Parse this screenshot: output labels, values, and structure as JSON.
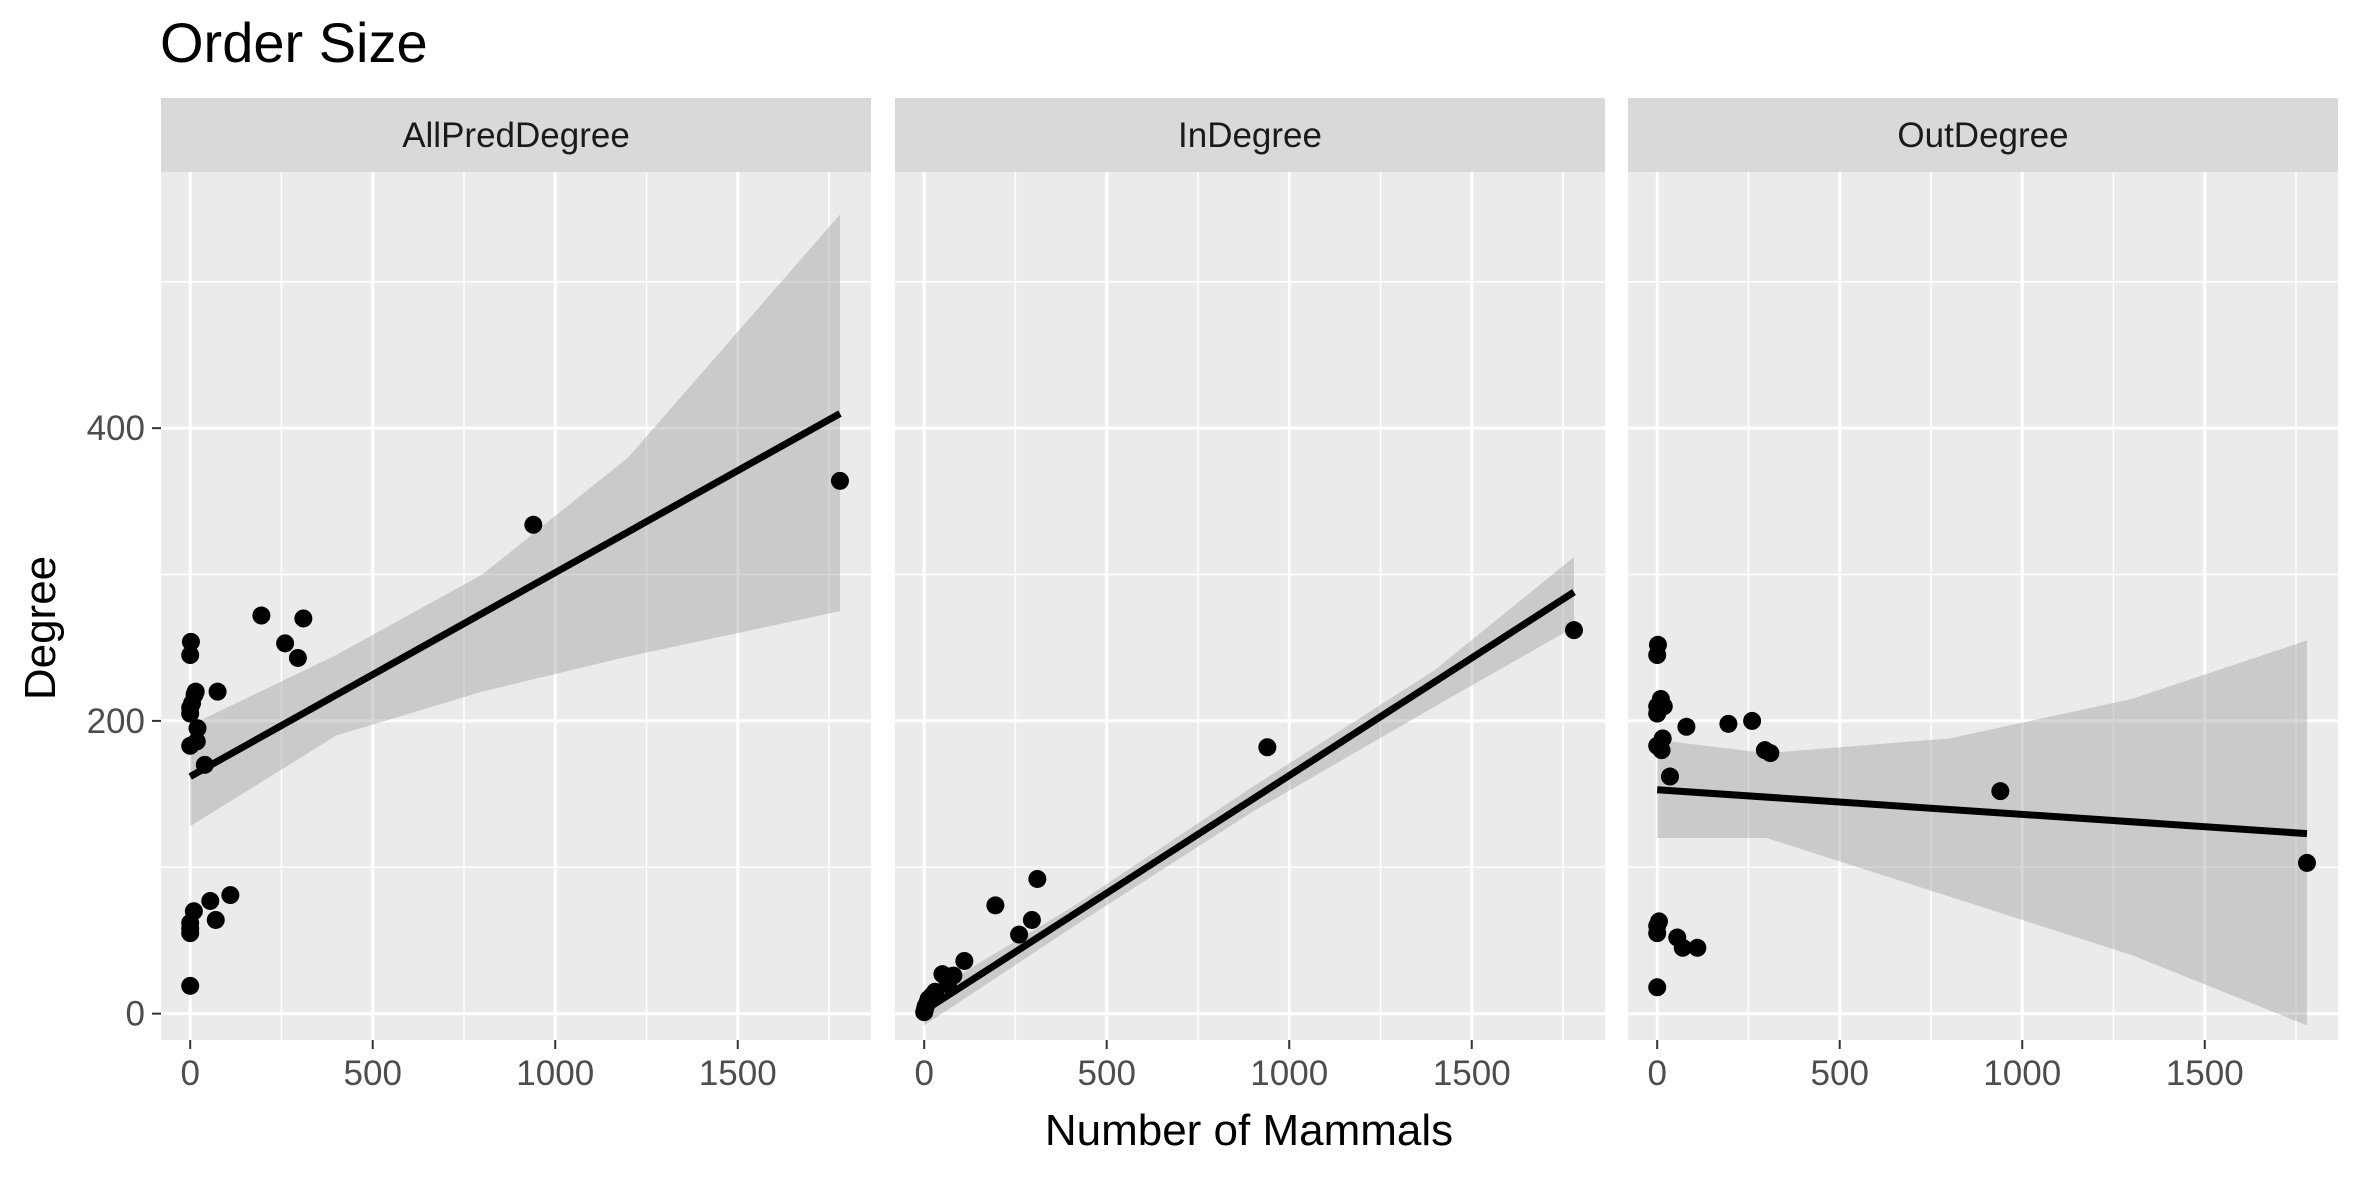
{
  "chart_data": {
    "type": "scatter",
    "title": "Order Size",
    "xlabel": "Number of Mammals",
    "ylabel": "Degree",
    "xlim": [
      -80,
      1865
    ],
    "ylim": [
      -18,
      575
    ],
    "x_ticks": [
      0,
      500,
      1000,
      1500
    ],
    "x_tick_labels": [
      "0",
      "500",
      "1000",
      "1500"
    ],
    "y_ticks": [
      0,
      200,
      400
    ],
    "y_tick_labels": [
      "0",
      "200",
      "400"
    ],
    "grid": true,
    "smoother": "linear regression with confidence band",
    "colors": {
      "panel": "#ebebeb",
      "strip": "#d9d9d9",
      "grid_major": "#ffffff",
      "points": "#000000",
      "line": "#000000",
      "band": "#999999"
    },
    "panels": [
      {
        "label": "AllPredDegree",
        "points": [
          {
            "x": 0,
            "y": 19
          },
          {
            "x": 0,
            "y": 55
          },
          {
            "x": 0,
            "y": 58
          },
          {
            "x": 0,
            "y": 62
          },
          {
            "x": 0,
            "y": 183
          },
          {
            "x": 0,
            "y": 205
          },
          {
            "x": 0,
            "y": 209
          },
          {
            "x": 0,
            "y": 245
          },
          {
            "x": 2,
            "y": 254
          },
          {
            "x": 5,
            "y": 212
          },
          {
            "x": 10,
            "y": 70
          },
          {
            "x": 12,
            "y": 218
          },
          {
            "x": 15,
            "y": 220
          },
          {
            "x": 18,
            "y": 186
          },
          {
            "x": 20,
            "y": 195
          },
          {
            "x": 40,
            "y": 170
          },
          {
            "x": 55,
            "y": 77
          },
          {
            "x": 70,
            "y": 64
          },
          {
            "x": 75,
            "y": 220
          },
          {
            "x": 110,
            "y": 81
          },
          {
            "x": 195,
            "y": 272
          },
          {
            "x": 260,
            "y": 253
          },
          {
            "x": 295,
            "y": 243
          },
          {
            "x": 310,
            "y": 270
          },
          {
            "x": 940,
            "y": 334
          },
          {
            "x": 1780,
            "y": 364
          }
        ],
        "fit": {
          "x": [
            0,
            1780
          ],
          "y": [
            162,
            410
          ]
        },
        "ci_upper": [
          {
            "x": 0,
            "y": 197
          },
          {
            "x": 400,
            "y": 245
          },
          {
            "x": 800,
            "y": 300
          },
          {
            "x": 1200,
            "y": 380
          },
          {
            "x": 1780,
            "y": 546
          }
        ],
        "ci_lower": [
          {
            "x": 0,
            "y": 128
          },
          {
            "x": 400,
            "y": 190
          },
          {
            "x": 800,
            "y": 220
          },
          {
            "x": 1200,
            "y": 244
          },
          {
            "x": 1780,
            "y": 275
          }
        ]
      },
      {
        "label": "InDegree",
        "points": [
          {
            "x": 0,
            "y": 1
          },
          {
            "x": 2,
            "y": 3
          },
          {
            "x": 4,
            "y": 5
          },
          {
            "x": 8,
            "y": 7
          },
          {
            "x": 12,
            "y": 10
          },
          {
            "x": 20,
            "y": 12
          },
          {
            "x": 30,
            "y": 15
          },
          {
            "x": 50,
            "y": 27
          },
          {
            "x": 65,
            "y": 20
          },
          {
            "x": 80,
            "y": 26
          },
          {
            "x": 110,
            "y": 36
          },
          {
            "x": 195,
            "y": 74
          },
          {
            "x": 260,
            "y": 54
          },
          {
            "x": 295,
            "y": 64
          },
          {
            "x": 310,
            "y": 92
          },
          {
            "x": 940,
            "y": 182
          },
          {
            "x": 1780,
            "y": 262
          }
        ],
        "fit": {
          "x": [
            0,
            1780
          ],
          "y": [
            2,
            288
          ]
        },
        "ci_upper": [
          {
            "x": 0,
            "y": 12
          },
          {
            "x": 400,
            "y": 72
          },
          {
            "x": 900,
            "y": 155
          },
          {
            "x": 1400,
            "y": 235
          },
          {
            "x": 1780,
            "y": 312
          }
        ],
        "ci_lower": [
          {
            "x": 0,
            "y": -8
          },
          {
            "x": 400,
            "y": 58
          },
          {
            "x": 900,
            "y": 138
          },
          {
            "x": 1400,
            "y": 210
          },
          {
            "x": 1780,
            "y": 264
          }
        ]
      },
      {
        "label": "OutDegree",
        "points": [
          {
            "x": 0,
            "y": 18
          },
          {
            "x": 0,
            "y": 55
          },
          {
            "x": 0,
            "y": 60
          },
          {
            "x": 0,
            "y": 183
          },
          {
            "x": 0,
            "y": 205
          },
          {
            "x": 0,
            "y": 210
          },
          {
            "x": 0,
            "y": 245
          },
          {
            "x": 2,
            "y": 252
          },
          {
            "x": 5,
            "y": 63
          },
          {
            "x": 10,
            "y": 215
          },
          {
            "x": 12,
            "y": 180
          },
          {
            "x": 15,
            "y": 188
          },
          {
            "x": 18,
            "y": 210
          },
          {
            "x": 35,
            "y": 162
          },
          {
            "x": 55,
            "y": 52
          },
          {
            "x": 70,
            "y": 45
          },
          {
            "x": 80,
            "y": 196
          },
          {
            "x": 110,
            "y": 45
          },
          {
            "x": 195,
            "y": 198
          },
          {
            "x": 260,
            "y": 200
          },
          {
            "x": 295,
            "y": 180
          },
          {
            "x": 310,
            "y": 178
          },
          {
            "x": 940,
            "y": 152
          },
          {
            "x": 1780,
            "y": 103
          }
        ],
        "fit": {
          "x": [
            0,
            1780
          ],
          "y": [
            153,
            123
          ]
        },
        "ci_upper": [
          {
            "x": 0,
            "y": 187
          },
          {
            "x": 300,
            "y": 178
          },
          {
            "x": 800,
            "y": 188
          },
          {
            "x": 1300,
            "y": 215
          },
          {
            "x": 1780,
            "y": 255
          }
        ],
        "ci_lower": [
          {
            "x": 0,
            "y": 120
          },
          {
            "x": 300,
            "y": 120
          },
          {
            "x": 800,
            "y": 80
          },
          {
            "x": 1300,
            "y": 40
          },
          {
            "x": 1780,
            "y": -8
          }
        ]
      }
    ]
  }
}
